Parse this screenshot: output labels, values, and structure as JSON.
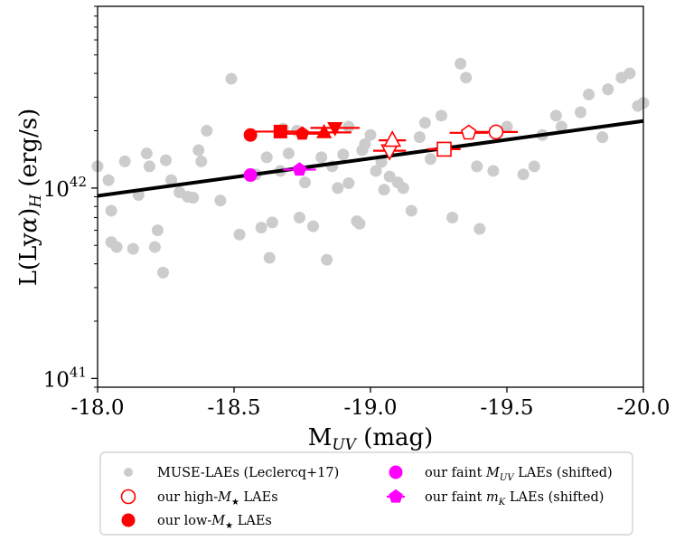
{
  "chart_data": {
    "type": "scatter",
    "x_axis": {
      "label_main": "M",
      "label_sub": "UV",
      "label_unit": " (mag)",
      "range": [
        -18.0,
        -20.0
      ],
      "reversed": true,
      "ticks": [
        -18.0,
        -18.5,
        -19.0,
        -19.5,
        -20.0
      ],
      "tick_labels": [
        "-18.0",
        "-18.5",
        "-19.0",
        "-19.5",
        "-20.0"
      ]
    },
    "y_axis": {
      "label_pre": "L(Ly",
      "label_alpha": "α",
      "label_close": ")",
      "label_sub": "H",
      "label_unit": " (erg/s)",
      "scale": "log",
      "range": [
        9e+40,
        9e+42
      ],
      "ticks": [
        1e+41,
        1e+42
      ],
      "tick_labels": [
        {
          "base": "10",
          "exp": "41"
        },
        {
          "base": "10",
          "exp": "42"
        }
      ]
    },
    "fit_line": {
      "x": [
        -18.0,
        -20.0
      ],
      "y": [
        9.1e+41,
        2.25e+42
      ],
      "color": "#000000"
    },
    "series": [
      {
        "name": "MUSE-LAEs (Leclercq+17)",
        "color": "#cccccc",
        "marker": "circle",
        "filled": true,
        "points": [
          [
            -18.0,
            1.3e+42
          ],
          [
            -18.05,
            7.6e+41
          ],
          [
            -18.05,
            5.2e+41
          ],
          [
            -18.07,
            4.9e+41
          ],
          [
            -18.04,
            1.1e+42
          ],
          [
            -18.1,
            1.38e+42
          ],
          [
            -18.13,
            4.8e+41
          ],
          [
            -18.15,
            9.2e+41
          ],
          [
            -18.18,
            1.52e+42
          ],
          [
            -18.19,
            1.3e+42
          ],
          [
            -18.21,
            4.9e+41
          ],
          [
            -18.22,
            6e+41
          ],
          [
            -18.24,
            3.6e+41
          ],
          [
            -18.25,
            1.4e+42
          ],
          [
            -18.27,
            1.1e+42
          ],
          [
            -18.3,
            9.5e+41
          ],
          [
            -18.33,
            9e+41
          ],
          [
            -18.35,
            8.9e+41
          ],
          [
            -18.37,
            1.58e+42
          ],
          [
            -18.38,
            1.38e+42
          ],
          [
            -18.4,
            2e+42
          ],
          [
            -18.45,
            8.6e+41
          ],
          [
            -18.49,
            3.75e+42
          ],
          [
            -18.52,
            5.7e+41
          ],
          [
            -18.56,
            1.17e+42
          ],
          [
            -18.6,
            6.2e+41
          ],
          [
            -18.62,
            1.45e+42
          ],
          [
            -18.63,
            4.3e+41
          ],
          [
            -18.64,
            6.6e+41
          ],
          [
            -18.67,
            1.23e+42
          ],
          [
            -18.7,
            1.52e+42
          ],
          [
            -18.73,
            2e+42
          ],
          [
            -18.76,
            1.07e+42
          ],
          [
            -18.79,
            6.3e+41
          ],
          [
            -18.82,
            1.45e+42
          ],
          [
            -18.84,
            4.2e+41
          ],
          [
            -18.86,
            1.3e+42
          ],
          [
            -18.88,
            1e+42
          ],
          [
            -18.9,
            1.5e+42
          ],
          [
            -18.92,
            1.06e+42
          ],
          [
            -18.95,
            6.7e+41
          ],
          [
            -18.96,
            6.5e+41
          ],
          [
            -18.97,
            1.58e+42
          ],
          [
            -18.98,
            1.7e+42
          ],
          [
            -19.0,
            1.9e+42
          ],
          [
            -19.02,
            1.23e+42
          ],
          [
            -19.04,
            1.37e+42
          ],
          [
            -19.05,
            9.8e+41
          ],
          [
            -19.07,
            1.15e+42
          ],
          [
            -19.1,
            1.07e+42
          ],
          [
            -19.12,
            1e+42
          ],
          [
            -19.15,
            7.6e+41
          ],
          [
            -19.2,
            2.2e+42
          ],
          [
            -19.26,
            2.4e+42
          ],
          [
            -19.3,
            7e+41
          ],
          [
            -19.33,
            4.5e+42
          ],
          [
            -19.35,
            3.8e+42
          ],
          [
            -19.39,
            1.3e+42
          ],
          [
            -19.4,
            6.1e+41
          ],
          [
            -19.45,
            1.23e+42
          ],
          [
            -19.5,
            2.1e+42
          ],
          [
            -19.56,
            1.18e+42
          ],
          [
            -19.6,
            1.3e+42
          ],
          [
            -19.63,
            1.9e+42
          ],
          [
            -19.7,
            2.1e+42
          ],
          [
            -19.77,
            2.5e+42
          ],
          [
            -19.8,
            3.1e+42
          ],
          [
            -19.85,
            1.85e+42
          ],
          [
            -19.87,
            3.3e+42
          ],
          [
            -19.92,
            3.8e+42
          ],
          [
            -19.95,
            4e+42
          ],
          [
            -19.98,
            2.7e+42
          ],
          [
            -20.0,
            2.8e+42
          ],
          [
            -19.68,
            2.4e+42
          ],
          [
            -19.18,
            1.85e+42
          ],
          [
            -19.22,
            1.42e+42
          ],
          [
            -18.92,
            2.1e+42
          ],
          [
            -18.74,
            7e+41
          ],
          [
            -18.68,
            2.05e+42
          ],
          [
            -18.58,
            1.18e+42
          ]
        ]
      },
      {
        "name": "our high-M★ LAEs",
        "label_parts": [
          "our high-",
          "M",
          "★",
          " LAEs"
        ],
        "color": "#ff0000",
        "filled": false,
        "points": [
          {
            "x": -19.46,
            "y": 1.97e+42,
            "marker": "circle",
            "xerr": 0.08
          },
          {
            "x": -19.36,
            "y": 1.95e+42,
            "marker": "pentagon",
            "xerr": 0.07
          },
          {
            "x": -19.27,
            "y": 1.6e+42,
            "marker": "square",
            "xerr": 0.06
          },
          {
            "x": -19.07,
            "y": 1.57e+42,
            "marker": "triangle-down",
            "xerr": 0.06
          },
          {
            "x": -19.08,
            "y": 1.78e+42,
            "marker": "triangle-up",
            "xerr": 0.05
          }
        ]
      },
      {
        "name": "our low-M★ LAEs",
        "label_parts": [
          "our low-",
          "M",
          "★",
          " LAEs"
        ],
        "color": "#ff0000",
        "filled": true,
        "points": [
          {
            "x": -18.56,
            "y": 1.9e+42,
            "marker": "circle",
            "xerr": 0.0
          },
          {
            "x": -18.67,
            "y": 1.98e+42,
            "marker": "square",
            "xerr": 0.09
          },
          {
            "x": -18.75,
            "y": 1.93e+42,
            "marker": "pentagon",
            "xerr": 0.1
          },
          {
            "x": -18.83,
            "y": 1.96e+42,
            "marker": "triangle-up",
            "xerr": 0.1
          },
          {
            "x": -18.87,
            "y": 2.07e+42,
            "marker": "triangle-down",
            "xerr": 0.09
          }
        ]
      },
      {
        "name": "our faint MUV LAEs (shifted)",
        "label_parts": [
          "our faint ",
          "M",
          "UV",
          " LAEs (shifted)"
        ],
        "color": "#ff00ff",
        "marker": "circle",
        "filled": true,
        "points": [
          {
            "x": -18.56,
            "y": 1.17e+42,
            "xerr": 0.0
          }
        ]
      },
      {
        "name": "our faint mK LAEs (shifted)",
        "label_parts": [
          "our faint ",
          "m",
          "K",
          " LAEs (shifted)"
        ],
        "color": "#ff00ff",
        "marker": "pentagon",
        "filled": true,
        "points": [
          {
            "x": -18.74,
            "y": 1.25e+42,
            "xerr": 0.06
          }
        ]
      }
    ],
    "legend": {
      "placement": "bottom",
      "columns": 2,
      "order": [
        0,
        1,
        2,
        3,
        4
      ]
    }
  }
}
